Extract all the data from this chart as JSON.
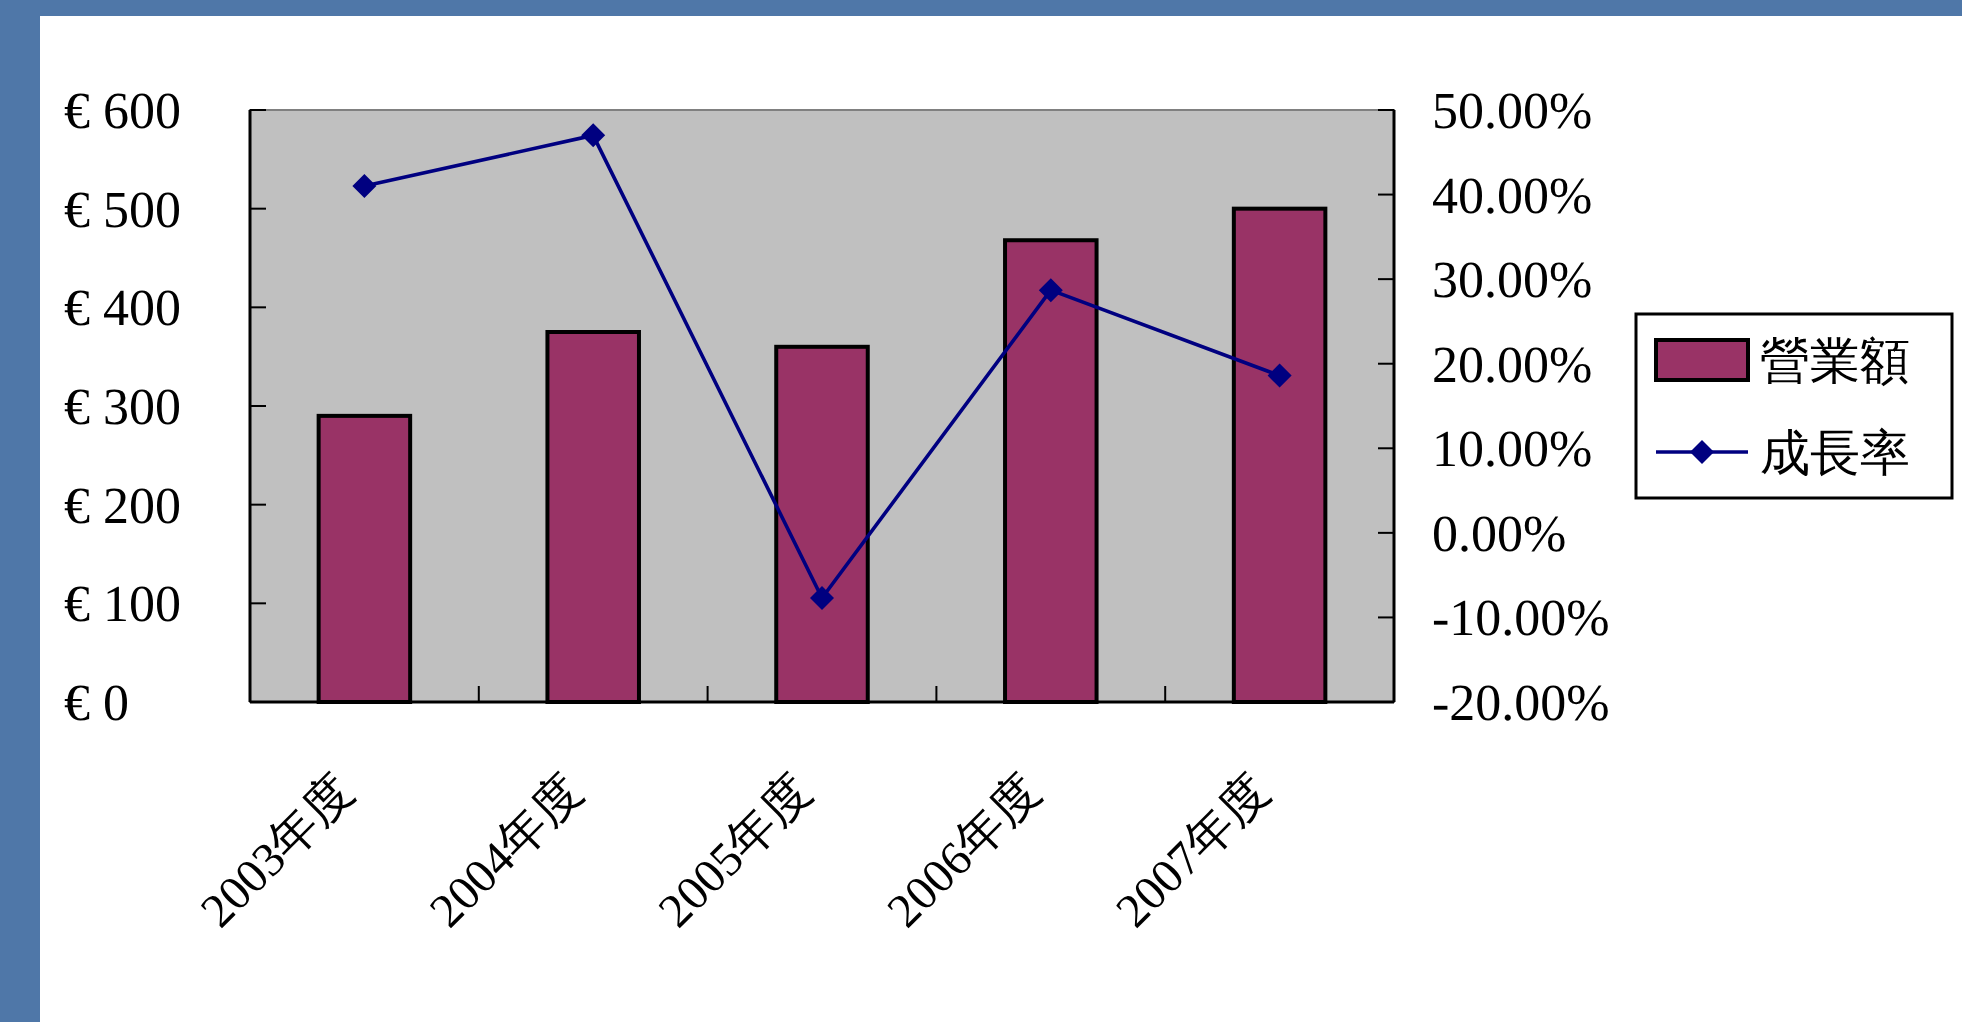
{
  "chart_data": {
    "type": "bar",
    "categories": [
      "2003年度",
      "2004年度",
      "2005年度",
      "2006年度",
      "2007年度"
    ],
    "series": [
      {
        "name": "營業額",
        "color": "#993366",
        "values": [
          290,
          375,
          360,
          468,
          500
        ]
      },
      {
        "name": "成長率",
        "type": "line",
        "axis": "y2",
        "color": "#000080",
        "values": [
          41.0,
          47.0,
          -7.7,
          28.7,
          18.6
        ]
      }
    ],
    "ylim": [
      0,
      600
    ],
    "yticks": [
      {
        "value": 0,
        "label": "€ 0"
      },
      {
        "value": 100,
        "label": "€ 100"
      },
      {
        "value": 200,
        "label": "€ 200"
      },
      {
        "value": 300,
        "label": "€ 300"
      },
      {
        "value": 400,
        "label": "€ 400"
      },
      {
        "value": 500,
        "label": "€ 500"
      },
      {
        "value": 600,
        "label": "€ 600"
      }
    ],
    "y2lim": [
      -20,
      50
    ],
    "y2ticks": [
      {
        "value": -20,
        "label": "-20.00%"
      },
      {
        "value": -10,
        "label": "-10.00%"
      },
      {
        "value": 0,
        "label": "0.00%"
      },
      {
        "value": 10,
        "label": "10.00%"
      },
      {
        "value": 20,
        "label": "20.00%"
      },
      {
        "value": 30,
        "label": "30.00%"
      },
      {
        "value": 40,
        "label": "40.00%"
      },
      {
        "value": 50,
        "label": "50.00%"
      }
    ],
    "marker": "diamond",
    "legend": "right",
    "grid": false
  }
}
